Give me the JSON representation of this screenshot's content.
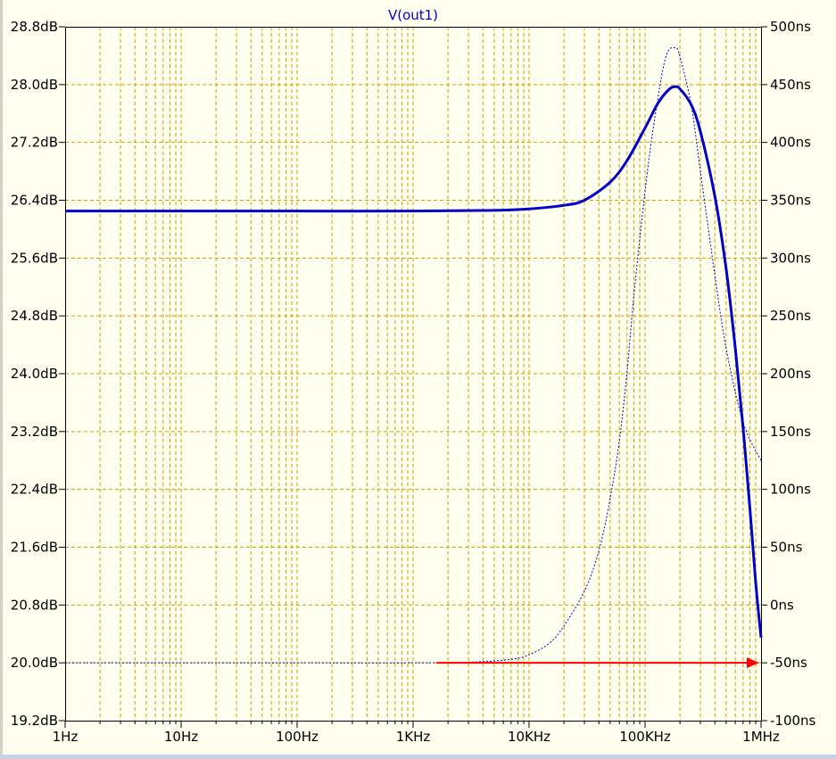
{
  "chart_data": {
    "type": "line",
    "title": "V(out1)",
    "x_scale": "log",
    "x_ticks": [
      {
        "value": 1,
        "label": "1Hz"
      },
      {
        "value": 10,
        "label": "10Hz"
      },
      {
        "value": 100,
        "label": "100Hz"
      },
      {
        "value": 1000,
        "label": "1KHz"
      },
      {
        "value": 10000,
        "label": "10KHz"
      },
      {
        "value": 100000,
        "label": "100KHz"
      },
      {
        "value": 1000000,
        "label": "1MHz"
      }
    ],
    "xlim": [
      1,
      1000000
    ],
    "y_left_ticks": [
      {
        "value": 28.8,
        "label": "28.8dB"
      },
      {
        "value": 28.0,
        "label": "28.0dB"
      },
      {
        "value": 27.2,
        "label": "27.2dB"
      },
      {
        "value": 26.4,
        "label": "26.4dB"
      },
      {
        "value": 25.6,
        "label": "25.6dB"
      },
      {
        "value": 24.8,
        "label": "24.8dB"
      },
      {
        "value": 24.0,
        "label": "24.0dB"
      },
      {
        "value": 23.2,
        "label": "23.2dB"
      },
      {
        "value": 22.4,
        "label": "22.4dB"
      },
      {
        "value": 21.6,
        "label": "21.6dB"
      },
      {
        "value": 20.8,
        "label": "20.8dB"
      },
      {
        "value": 20.0,
        "label": "20.0dB"
      },
      {
        "value": 19.2,
        "label": "19.2dB"
      }
    ],
    "y_left_lim": [
      19.2,
      28.8
    ],
    "y_right_ticks": [
      {
        "value": 500,
        "label": "500ns"
      },
      {
        "value": 450,
        "label": "450ns"
      },
      {
        "value": 400,
        "label": "400ns"
      },
      {
        "value": 350,
        "label": "350ns"
      },
      {
        "value": 300,
        "label": "300ns"
      },
      {
        "value": 250,
        "label": "250ns"
      },
      {
        "value": 200,
        "label": "200ns"
      },
      {
        "value": 150,
        "label": "150ns"
      },
      {
        "value": 100,
        "label": "100ns"
      },
      {
        "value": 50,
        "label": "50ns"
      },
      {
        "value": 0,
        "label": "0ns"
      },
      {
        "value": -50,
        "label": "-50ns"
      },
      {
        "value": -100,
        "label": "-100ns"
      }
    ],
    "y_right_lim": [
      -100,
      500
    ],
    "grid": true,
    "series": [
      {
        "axis": "left",
        "style": "solid",
        "color": "#0000c8",
        "x": [
          1,
          10,
          100,
          1000,
          5000,
          10000,
          20000,
          30000,
          50000,
          70000,
          100000,
          130000,
          160000,
          180000,
          200000,
          250000,
          300000,
          400000,
          500000,
          600000,
          700000,
          800000,
          900000,
          1000000
        ],
        "y": [
          26.25,
          26.25,
          26.25,
          26.25,
          26.26,
          26.28,
          26.33,
          26.4,
          26.65,
          26.95,
          27.4,
          27.75,
          27.93,
          27.97,
          27.94,
          27.72,
          27.35,
          26.45,
          25.45,
          24.35,
          23.25,
          22.15,
          21.1,
          20.35
        ]
      },
      {
        "axis": "right",
        "style": "dotted",
        "color": "#0000c8",
        "x": [
          1,
          10,
          100,
          1000,
          3000,
          7000,
          10000,
          15000,
          20000,
          30000,
          40000,
          50000,
          60000,
          70000,
          80000,
          100000,
          120000,
          150000,
          180000,
          200000,
          250000,
          300000,
          400000,
          500000,
          700000,
          1000000
        ],
        "y": [
          -50,
          -50,
          -50,
          -50,
          -49.5,
          -47,
          -43,
          -33,
          -18,
          12,
          47,
          92,
          142,
          202,
          267,
          358,
          418,
          473,
          482,
          474,
          432,
          375,
          285,
          222,
          158,
          125
        ]
      }
    ],
    "annotations": [
      {
        "type": "arrow",
        "color": "#ff0000",
        "from_x": 1600,
        "to_x": 1000000,
        "y_right": -50
      }
    ]
  }
}
